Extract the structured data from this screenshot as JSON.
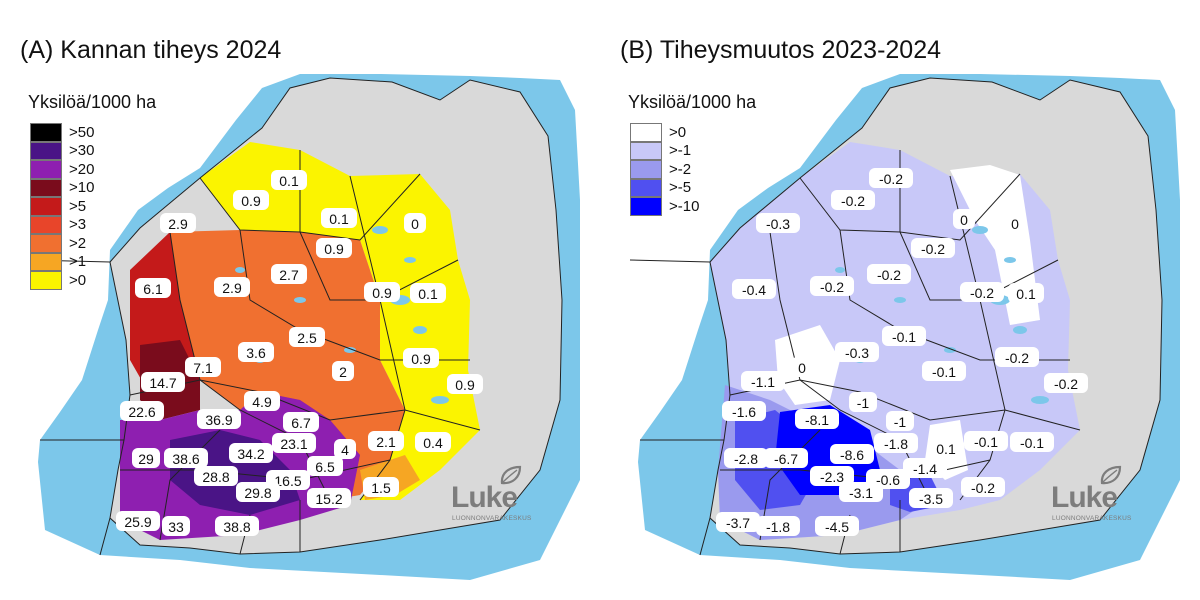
{
  "panels": [
    {
      "title": "(A) Kannan tiheys 2024",
      "legend": {
        "title": "Yksilöä/1000 ha",
        "items": [
          {
            "label": ">50",
            "color": "#000000"
          },
          {
            "label": ">30",
            "color": "#4a1486"
          },
          {
            "label": ">20",
            "color": "#8e1fb0"
          },
          {
            "label": ">10",
            "color": "#7a0c1c"
          },
          {
            "label": ">5",
            "color": "#c41a1a"
          },
          {
            "label": ">3",
            "color": "#e8452a"
          },
          {
            "label": ">2",
            "color": "#f07030"
          },
          {
            "label": ">1",
            "color": "#f6a623"
          },
          {
            "label": ">0",
            "color": "#fbf400"
          }
        ]
      },
      "labels": [
        "0.1",
        "0.9",
        "2.9",
        "0.1",
        "0",
        "0.9",
        "6.1",
        "2.9",
        "2.7",
        "0.9",
        "0.1",
        "2.5",
        "3.6",
        "0.9",
        "7.1",
        "14.7",
        "2",
        "0.9",
        "4.9",
        "22.6",
        "36.9",
        "6.7",
        "23.1",
        "2.1",
        "0.4",
        "29",
        "38.6",
        "34.2",
        "4",
        "28.8",
        "6.5",
        "16.5",
        "29.8",
        "15.2",
        "1.5",
        "25.9",
        "33",
        "38.8"
      ],
      "logo": {
        "word": "Luke",
        "subtitle": "LUONNONVARAKESKUS"
      }
    },
    {
      "title": "(B) Tiheysmuutos 2023-2024",
      "legend": {
        "title": "Yksilöä/1000 ha",
        "items": [
          {
            "label": ">0",
            "color": "#ffffff"
          },
          {
            "label": ">-1",
            "color": "#c8c8f8"
          },
          {
            "label": ">-2",
            "color": "#9a9aee"
          },
          {
            "label": ">-5",
            "color": "#5050f0"
          },
          {
            "label": ">-10",
            "color": "#0000ff"
          }
        ]
      },
      "labels": [
        "-0.2",
        "-0.2",
        "-0.3",
        "0",
        "0",
        "-0.2",
        "-0.4",
        "-0.2",
        "-0.2",
        "-0.2",
        "0.1",
        "-0.1",
        "-0.3",
        "0",
        "-0.2",
        "-1.1",
        "-0.1",
        "-0.2",
        "-1.6",
        "-8.1",
        "-1",
        "-1",
        "-1.8",
        "0.1",
        "-0.1",
        "-0.1",
        "-2.8",
        "-6.7",
        "-8.6",
        "-1.4",
        "-2.3",
        "-0.6",
        "-3.1",
        "-3.5",
        "-0.2",
        "-3.7",
        "-1.8",
        "-4.5"
      ],
      "logo": {
        "word": "Luke",
        "subtitle": "LUONNONVARAKESKUS"
      }
    }
  ]
}
